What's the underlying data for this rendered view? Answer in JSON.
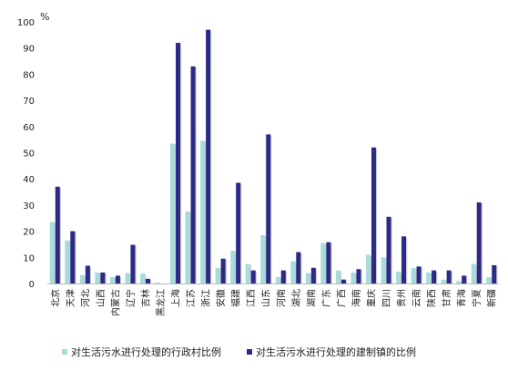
{
  "chart_data": {
    "type": "bar",
    "unit_label": "%",
    "ylim": [
      0,
      100
    ],
    "y_ticks": [
      "0",
      "10",
      "20",
      "30",
      "40",
      "50",
      "60",
      "70",
      "80",
      "90",
      "100"
    ],
    "categories": [
      "北京",
      "天津",
      "河北",
      "山西",
      "内蒙古",
      "辽宁",
      "吉林",
      "黑龙江",
      "上海",
      "江苏",
      "浙江",
      "安徽",
      "福建",
      "江西",
      "山东",
      "河南",
      "湖北",
      "湖南",
      "广东",
      "广西",
      "海南",
      "重庆",
      "四川",
      "贵州",
      "云南",
      "陕西",
      "甘肃",
      "青海",
      "宁夏",
      "新疆"
    ],
    "series": [
      {
        "name": "对生活污水进行处理的行政村比例",
        "color": "#a8dcdc",
        "values": [
          23.5,
          16.5,
          3.2,
          4.2,
          2.5,
          4.0,
          3.8,
          0.4,
          53.5,
          27.5,
          54.5,
          6.0,
          12.5,
          7.5,
          18.5,
          2.5,
          8.5,
          4.0,
          15.5,
          5.0,
          4.2,
          11.0,
          10.0,
          4.5,
          6.0,
          4.2,
          1.5,
          1.0,
          7.5,
          2.5
        ]
      },
      {
        "name": "对生活污水进行处理的建制镇的比例",
        "color": "#2b2a86",
        "values": [
          37.0,
          20.0,
          6.8,
          4.2,
          3.0,
          14.8,
          1.8,
          0,
          92.0,
          83.0,
          97.0,
          9.5,
          38.5,
          5.0,
          57.0,
          5.0,
          12.0,
          6.0,
          15.8,
          1.5,
          5.5,
          52.0,
          25.5,
          18.0,
          6.5,
          5.0,
          5.0,
          3.0,
          31.0,
          7.0
        ]
      }
    ],
    "legend_position": "bottom",
    "grid": false
  }
}
